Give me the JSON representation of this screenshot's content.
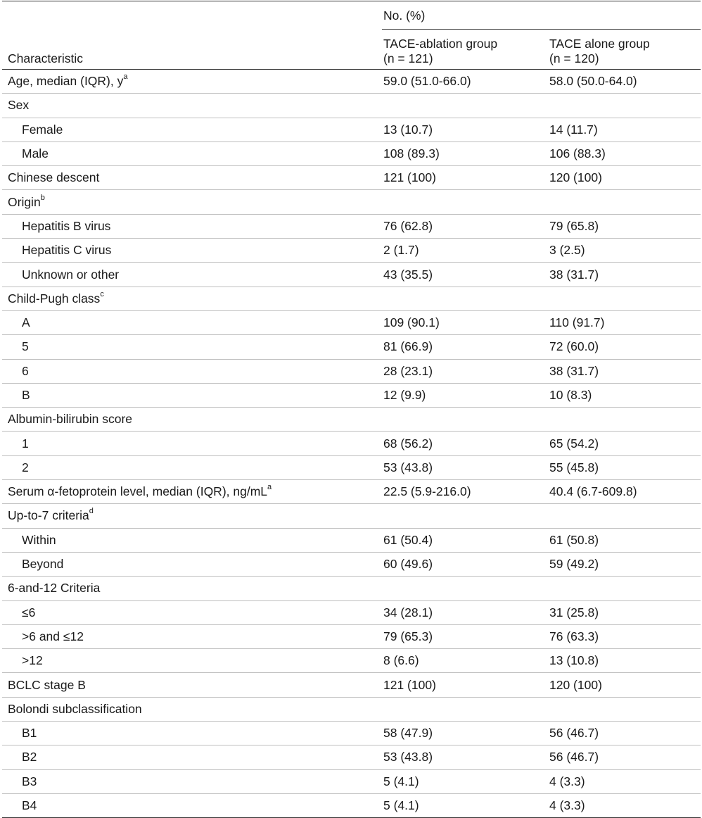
{
  "header": {
    "characteristic": "Characteristic",
    "group_span": "No. (%)",
    "col1_name": "TACE-ablation group",
    "col1_n": "(n = 121)",
    "col2_name": "TACE alone group",
    "col2_n": "(n = 120)"
  },
  "rows": [
    {
      "label": "Age, median (IQR), y",
      "sup": "a",
      "indent": false,
      "v1": "59.0 (51.0-66.0)",
      "v2": "58.0 (50.0-64.0)"
    },
    {
      "label": "Sex",
      "sup": "",
      "indent": false,
      "v1": "",
      "v2": ""
    },
    {
      "label": "Female",
      "sup": "",
      "indent": true,
      "v1": "13 (10.7)",
      "v2": "14 (11.7)"
    },
    {
      "label": "Male",
      "sup": "",
      "indent": true,
      "v1": "108 (89.3)",
      "v2": "106 (88.3)"
    },
    {
      "label": "Chinese descent",
      "sup": "",
      "indent": false,
      "v1": "121 (100)",
      "v2": "120 (100)"
    },
    {
      "label": "Origin",
      "sup": "b",
      "indent": false,
      "v1": "",
      "v2": ""
    },
    {
      "label": "Hepatitis B virus",
      "sup": "",
      "indent": true,
      "v1": "76 (62.8)",
      "v2": "79 (65.8)"
    },
    {
      "label": "Hepatitis C virus",
      "sup": "",
      "indent": true,
      "v1": "2 (1.7)",
      "v2": "3 (2.5)"
    },
    {
      "label": "Unknown or other",
      "sup": "",
      "indent": true,
      "v1": "43 (35.5)",
      "v2": "38 (31.7)"
    },
    {
      "label": "Child-Pugh class",
      "sup": "c",
      "indent": false,
      "v1": "",
      "v2": ""
    },
    {
      "label": "A",
      "sup": "",
      "indent": true,
      "v1": "109 (90.1)",
      "v2": "110 (91.7)"
    },
    {
      "label": "5",
      "sup": "",
      "indent": true,
      "v1": "81 (66.9)",
      "v2": "72 (60.0)"
    },
    {
      "label": "6",
      "sup": "",
      "indent": true,
      "v1": "28 (23.1)",
      "v2": "38 (31.7)"
    },
    {
      "label": "B",
      "sup": "",
      "indent": true,
      "v1": "12 (9.9)",
      "v2": "10 (8.3)"
    },
    {
      "label": "Albumin-bilirubin score",
      "sup": "",
      "indent": false,
      "v1": "",
      "v2": ""
    },
    {
      "label": "1",
      "sup": "",
      "indent": true,
      "v1": "68 (56.2)",
      "v2": "65 (54.2)"
    },
    {
      "label": "2",
      "sup": "",
      "indent": true,
      "v1": "53 (43.8)",
      "v2": "55 (45.8)"
    },
    {
      "label": "Serum α-fetoprotein level, median (IQR), ng/mL",
      "sup": "a",
      "indent": false,
      "v1": "22.5 (5.9-216.0)",
      "v2": "40.4 (6.7-609.8)"
    },
    {
      "label": "Up-to-7 criteria",
      "sup": "d",
      "indent": false,
      "v1": "",
      "v2": ""
    },
    {
      "label": "Within",
      "sup": "",
      "indent": true,
      "v1": "61 (50.4)",
      "v2": "61 (50.8)"
    },
    {
      "label": "Beyond",
      "sup": "",
      "indent": true,
      "v1": "60 (49.6)",
      "v2": "59 (49.2)"
    },
    {
      "label": "6-and-12 Criteria",
      "sup": "",
      "indent": false,
      "v1": "",
      "v2": ""
    },
    {
      "label": "≤6",
      "sup": "",
      "indent": true,
      "v1": "34 (28.1)",
      "v2": "31 (25.8)"
    },
    {
      "label": ">6 and ≤12",
      "sup": "",
      "indent": true,
      "v1": "79 (65.3)",
      "v2": "76 (63.3)"
    },
    {
      "label": ">12",
      "sup": "",
      "indent": true,
      "v1": "8 (6.6)",
      "v2": "13 (10.8)"
    },
    {
      "label": "BCLC stage B",
      "sup": "",
      "indent": false,
      "v1": "121 (100)",
      "v2": "120 (100)"
    },
    {
      "label": "Bolondi subclassification",
      "sup": "",
      "indent": false,
      "v1": "",
      "v2": ""
    },
    {
      "label": "B1",
      "sup": "",
      "indent": true,
      "v1": "58 (47.9)",
      "v2": "56 (46.7)"
    },
    {
      "label": "B2",
      "sup": "",
      "indent": true,
      "v1": "53 (43.8)",
      "v2": "56 (46.7)"
    },
    {
      "label": "B3",
      "sup": "",
      "indent": true,
      "v1": "5 (4.1)",
      "v2": "4 (3.3)"
    },
    {
      "label": "B4",
      "sup": "",
      "indent": true,
      "v1": "5 (4.1)",
      "v2": "4 (3.3)"
    }
  ]
}
